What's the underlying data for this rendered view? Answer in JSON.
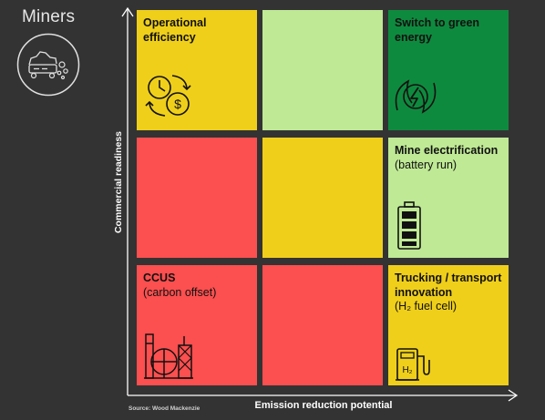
{
  "title": "Miners",
  "y_axis_label": "Commercial readiness",
  "x_axis_label": "Emission reduction potential",
  "source": "Source: Wood Mackenzie",
  "colors": {
    "background": "#333333",
    "red": "#fc4f4f",
    "yellow": "#efcf1a",
    "light_green": "#bfe995",
    "green": "#0e8a3e"
  },
  "cells": {
    "top_left": {
      "color": "yellow",
      "title": "Operational efficiency",
      "subtitle": "",
      "icon": "clock-dollar-exchange-icon"
    },
    "top_middle": {
      "color": "light_green",
      "title": "",
      "subtitle": ""
    },
    "top_right": {
      "color": "green",
      "title": "Switch to green energy",
      "subtitle": "",
      "icon": "leaf-lightning-icon"
    },
    "mid_left": {
      "color": "red",
      "title": "",
      "subtitle": ""
    },
    "mid_middle": {
      "color": "yellow",
      "title": "",
      "subtitle": ""
    },
    "mid_right": {
      "color": "light_green",
      "title": "Mine electrification",
      "subtitle": "(battery run)",
      "icon": "battery-icon"
    },
    "bot_left": {
      "color": "red",
      "title": "CCUS",
      "subtitle": "(carbon offset)",
      "icon": "industrial-plant-icon"
    },
    "bot_middle": {
      "color": "red",
      "title": "",
      "subtitle": ""
    },
    "bot_right": {
      "color": "yellow",
      "title": "Trucking / transport innovation",
      "subtitle": "(H₂ fuel cell)",
      "icon": "hydrogen-pump-icon"
    }
  }
}
